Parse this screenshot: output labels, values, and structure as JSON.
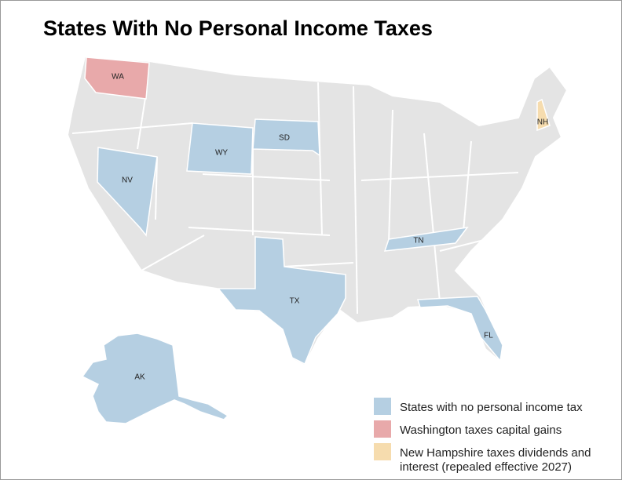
{
  "title": "States With No Personal Income Taxes",
  "states": [
    {
      "label": "WA",
      "color": "#e8a9aa"
    },
    {
      "label": "WY",
      "color": "#b5cfe2"
    },
    {
      "label": "SD",
      "color": "#b5cfe2"
    },
    {
      "label": "NV",
      "color": "#b5cfe2"
    },
    {
      "label": "TX",
      "color": "#b5cfe2"
    },
    {
      "label": "TN",
      "color": "#b5cfe2"
    },
    {
      "label": "FL",
      "color": "#b5cfe2"
    },
    {
      "label": "NH",
      "color": "#f6dcae"
    },
    {
      "label": "AK",
      "color": "#b5cfe2"
    }
  ],
  "legend": [
    {
      "label": "States with no personal income tax",
      "color": "#b5cfe2"
    },
    {
      "label": "Washington taxes capital gains",
      "color": "#e8a9aa"
    },
    {
      "label": [
        "New Hampshire taxes dividends and",
        "interest (repealed effective 2027)"
      ],
      "color": "#f6dcae"
    }
  ]
}
